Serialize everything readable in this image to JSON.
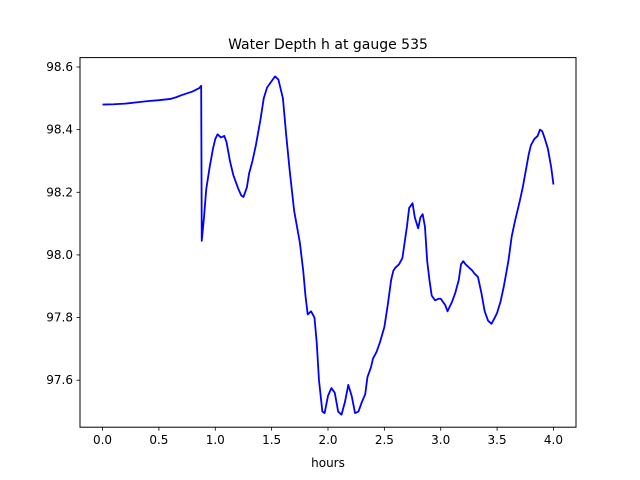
{
  "chart_data": {
    "type": "line",
    "title": "Water Depth h at gauge 535",
    "xlabel": "hours",
    "ylabel": "",
    "xlim": [
      -0.2,
      4.2
    ],
    "ylim": [
      97.45,
      98.63
    ],
    "grid": false,
    "x_ticks": [
      {
        "value": 0.0,
        "label": "0.0"
      },
      {
        "value": 0.5,
        "label": "0.5"
      },
      {
        "value": 1.0,
        "label": "1.0"
      },
      {
        "value": 1.5,
        "label": "1.5"
      },
      {
        "value": 2.0,
        "label": "2.0"
      },
      {
        "value": 2.5,
        "label": "2.5"
      },
      {
        "value": 3.0,
        "label": "3.0"
      },
      {
        "value": 3.5,
        "label": "3.5"
      },
      {
        "value": 4.0,
        "label": "4.0"
      }
    ],
    "y_ticks": [
      {
        "value": 97.6,
        "label": "97.6"
      },
      {
        "value": 97.8,
        "label": "97.8"
      },
      {
        "value": 98.0,
        "label": "98.0"
      },
      {
        "value": 98.2,
        "label": "98.2"
      },
      {
        "value": 98.4,
        "label": "98.4"
      },
      {
        "value": 98.6,
        "label": "98.6"
      }
    ],
    "series": [
      {
        "color": "#0000ff",
        "x": [
          0.0,
          0.1,
          0.2,
          0.3,
          0.4,
          0.5,
          0.6,
          0.65,
          0.7,
          0.8,
          0.86,
          0.875,
          0.88,
          0.9,
          0.92,
          0.95,
          0.98,
          1.0,
          1.02,
          1.05,
          1.08,
          1.1,
          1.13,
          1.16,
          1.2,
          1.23,
          1.25,
          1.28,
          1.3,
          1.33,
          1.36,
          1.4,
          1.43,
          1.46,
          1.5,
          1.53,
          1.56,
          1.6,
          1.63,
          1.66,
          1.7,
          1.75,
          1.78,
          1.8,
          1.82,
          1.85,
          1.88,
          1.9,
          1.92,
          1.95,
          1.97,
          2.0,
          2.03,
          2.06,
          2.09,
          2.12,
          2.15,
          2.18,
          2.21,
          2.24,
          2.27,
          2.3,
          2.33,
          2.35,
          2.38,
          2.4,
          2.43,
          2.46,
          2.5,
          2.53,
          2.56,
          2.58,
          2.6,
          2.63,
          2.66,
          2.68,
          2.7,
          2.72,
          2.75,
          2.77,
          2.8,
          2.82,
          2.84,
          2.86,
          2.88,
          2.9,
          2.92,
          2.95,
          2.98,
          3.0,
          3.02,
          3.04,
          3.06,
          3.1,
          3.13,
          3.16,
          3.18,
          3.2,
          3.22,
          3.25,
          3.28,
          3.3,
          3.33,
          3.36,
          3.39,
          3.42,
          3.45,
          3.48,
          3.5,
          3.53,
          3.56,
          3.6,
          3.63,
          3.66,
          3.7,
          3.73,
          3.76,
          3.78,
          3.8,
          3.83,
          3.86,
          3.88,
          3.9,
          3.92,
          3.95,
          3.98,
          4.0
        ],
        "y": [
          98.48,
          98.481,
          98.483,
          98.487,
          98.491,
          98.494,
          98.498,
          98.503,
          98.51,
          98.522,
          98.533,
          98.54,
          98.045,
          98.12,
          98.21,
          98.28,
          98.34,
          98.37,
          98.385,
          98.375,
          98.38,
          98.36,
          98.3,
          98.255,
          98.215,
          98.19,
          98.185,
          98.215,
          98.26,
          98.3,
          98.35,
          98.43,
          98.5,
          98.535,
          98.555,
          98.57,
          98.56,
          98.5,
          98.38,
          98.27,
          98.14,
          98.04,
          97.95,
          97.87,
          97.81,
          97.82,
          97.8,
          97.72,
          97.6,
          97.5,
          97.495,
          97.55,
          97.575,
          97.56,
          97.5,
          97.49,
          97.53,
          97.585,
          97.55,
          97.495,
          97.5,
          97.53,
          97.555,
          97.61,
          97.64,
          97.67,
          97.69,
          97.72,
          97.77,
          97.84,
          97.92,
          97.95,
          97.96,
          97.97,
          97.99,
          98.04,
          98.09,
          98.15,
          98.165,
          98.12,
          98.085,
          98.12,
          98.13,
          98.09,
          97.98,
          97.92,
          97.87,
          97.855,
          97.86,
          97.86,
          97.85,
          97.84,
          97.82,
          97.85,
          97.88,
          97.92,
          97.97,
          97.98,
          97.97,
          97.96,
          97.95,
          97.94,
          97.93,
          97.88,
          97.82,
          97.79,
          97.78,
          97.8,
          97.815,
          97.85,
          97.9,
          97.98,
          98.06,
          98.11,
          98.17,
          98.22,
          98.28,
          98.32,
          98.35,
          98.37,
          98.38,
          98.4,
          98.395,
          98.375,
          98.34,
          98.28,
          98.225
        ]
      }
    ]
  }
}
